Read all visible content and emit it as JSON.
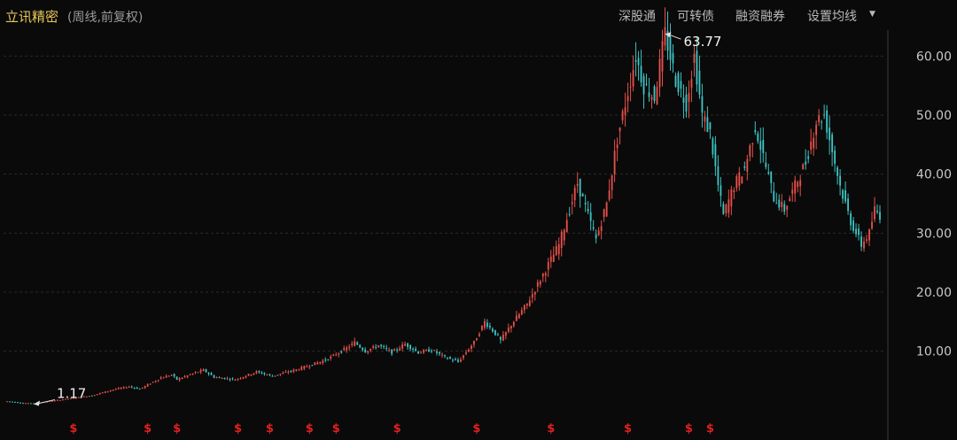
{
  "header": {
    "stock_name": "立讯精密",
    "subtitle": "(周线,前复权)",
    "buttons": [
      "深股通",
      "可转债",
      "融资融券",
      "设置均线"
    ],
    "dropdown_icon": "triangle-down-icon"
  },
  "colors": {
    "background": "#0a0a0a",
    "up": "#e5504a",
    "down": "#3ec1c1",
    "grid": "#2a2a2a",
    "axis_text": "#c8c8c8",
    "title": "#e8c95a",
    "marker": "#e02020"
  },
  "chart_data": {
    "type": "candlestick",
    "title": "立讯精密",
    "subtitle": "(周线,前复权)",
    "y_axis": {
      "ticks": [
        10,
        20,
        30,
        40,
        50,
        60
      ],
      "tick_labels": [
        "10.00",
        "20.00",
        "30.00",
        "40.00",
        "50.00",
        "60.00"
      ],
      "range": [
        -1,
        65
      ]
    },
    "annotations": [
      {
        "label": "1.17",
        "value": 1.17,
        "type": "min"
      },
      {
        "label": "63.77",
        "value": 63.77,
        "type": "max"
      }
    ],
    "event_marker_symbol": "$",
    "event_marker_count": 13,
    "price_path": [
      [
        0,
        1.5
      ],
      [
        6,
        1.2
      ],
      [
        10,
        1.17
      ],
      [
        14,
        1.4
      ],
      [
        24,
        2.0
      ],
      [
        32,
        2.5
      ],
      [
        40,
        3.5
      ],
      [
        46,
        4.0
      ],
      [
        50,
        3.6
      ],
      [
        58,
        5.5
      ],
      [
        62,
        6.0
      ],
      [
        64,
        5.2
      ],
      [
        70,
        6.2
      ],
      [
        74,
        6.8
      ],
      [
        78,
        5.6
      ],
      [
        86,
        5.2
      ],
      [
        94,
        6.5
      ],
      [
        100,
        5.8
      ],
      [
        110,
        7.0
      ],
      [
        120,
        8.5
      ],
      [
        128,
        10.5
      ],
      [
        131,
        11.5
      ],
      [
        135,
        10.0
      ],
      [
        140,
        11.0
      ],
      [
        145,
        9.8
      ],
      [
        150,
        11.2
      ],
      [
        155,
        9.8
      ],
      [
        160,
        10.2
      ],
      [
        165,
        9.0
      ],
      [
        170,
        8.2
      ],
      [
        176,
        11.5
      ],
      [
        180,
        15.0
      ],
      [
        184,
        13.0
      ],
      [
        186,
        11.8
      ],
      [
        190,
        14.5
      ],
      [
        196,
        18.0
      ],
      [
        202,
        23.0
      ],
      [
        208,
        28.0
      ],
      [
        212,
        34.0
      ],
      [
        215,
        38.5
      ],
      [
        219,
        33.0
      ],
      [
        222,
        29.0
      ],
      [
        226,
        35.0
      ],
      [
        230,
        46.0
      ],
      [
        234,
        54.0
      ],
      [
        237,
        60.0
      ],
      [
        240,
        55.0
      ],
      [
        244,
        53.0
      ],
      [
        248,
        63.77
      ],
      [
        252,
        56.0
      ],
      [
        256,
        52.0
      ],
      [
        259,
        60.0
      ],
      [
        262,
        50.0
      ],
      [
        265,
        47.0
      ],
      [
        268,
        38.0
      ],
      [
        270,
        33.0
      ],
      [
        274,
        38.0
      ],
      [
        278,
        41.0
      ],
      [
        282,
        48.0
      ],
      [
        285,
        43.0
      ],
      [
        289,
        36.0
      ],
      [
        293,
        34.0
      ],
      [
        297,
        38.0
      ],
      [
        301,
        42.0
      ],
      [
        305,
        49.0
      ],
      [
        308,
        50.0
      ],
      [
        311,
        44.0
      ],
      [
        314,
        38.0
      ],
      [
        318,
        32.0
      ],
      [
        322,
        28.0
      ],
      [
        325,
        30.0
      ],
      [
        327,
        34.0
      ],
      [
        329,
        33.0
      ]
    ]
  }
}
